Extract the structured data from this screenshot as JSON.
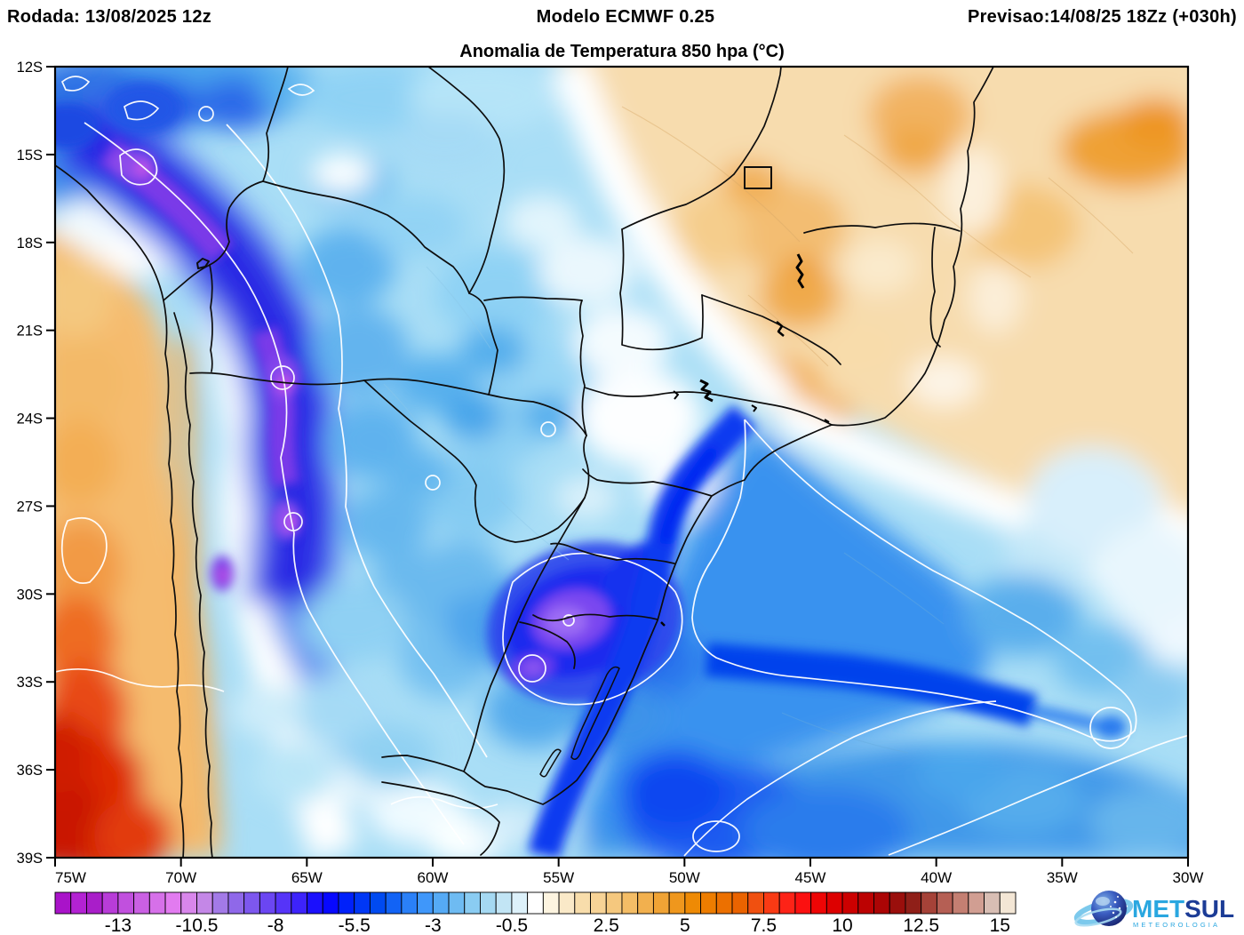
{
  "header": {
    "run_label": "Rodada: 13/08/2025 12z",
    "model_label": "Modelo ECMWF 0.25",
    "forecast_label": "Previsao:14/08/25 18Zz (+030h)"
  },
  "title": "Anomalia de Temperatura 850 hpa (°C)",
  "axes": {
    "lat_labels": [
      "12S",
      "15S",
      "18S",
      "21S",
      "24S",
      "27S",
      "30S",
      "33S",
      "36S",
      "39S"
    ],
    "lon_labels": [
      "75W",
      "70W",
      "65W",
      "60W",
      "55W",
      "50W",
      "45W",
      "40W",
      "35W",
      "30W"
    ]
  },
  "colorbar": {
    "unit": "°C",
    "min": -15,
    "max": 15.5,
    "step": 0.5,
    "tick_values": [
      -13,
      -10.5,
      -8,
      -5.5,
      -3,
      -0.5,
      2.5,
      5,
      7.5,
      10,
      12.5,
      15
    ],
    "tick_labels": [
      "-13",
      "-10.5",
      "-8",
      "-5.5",
      "-3",
      "-0.5",
      "2.5",
      "5",
      "7.5",
      "10",
      "12.5",
      "15"
    ],
    "cell_colors": [
      "#a913c9",
      "#b322d3",
      "#a91ec9",
      "#b83cd8",
      "#c150de",
      "#ca60e3",
      "#d670e9",
      "#e27bf0",
      "#d886eb",
      "#c487e7",
      "#a37ae7",
      "#8f68e9",
      "#7d57ee",
      "#6b46f2",
      "#5634f8",
      "#3d23fb",
      "#1b10fd",
      "#0708ff",
      "#0021fa",
      "#0037f5",
      "#004af0",
      "#1263f5",
      "#2a80f8",
      "#3f97fa",
      "#55aaf5",
      "#6ebbf2",
      "#8accf2",
      "#a5d9f2",
      "#c2e5f5",
      "#ddf1fa",
      "#ffffff",
      "#fdf4e0",
      "#fae9c8",
      "#f8ddab",
      "#f7d396",
      "#f5c87e",
      "#f4bd66",
      "#f2b04e",
      "#f0a335",
      "#ef971d",
      "#ee8a05",
      "#ed7d00",
      "#ec7000",
      "#ea6300",
      "#f05010",
      "#f93a14",
      "#fd2317",
      "#fb1010",
      "#ee0505",
      "#dd0000",
      "#cc0000",
      "#bc0202",
      "#ab0505",
      "#9a0f0c",
      "#8f1f18",
      "#a54238",
      "#b55f54",
      "#c47f72",
      "#d19e92",
      "#d8beb4",
      "#f3e6d5"
    ]
  },
  "logo": {
    "brand_met": "MET",
    "brand_sul": "SUL",
    "subtitle": "METEOROLOGIA",
    "color_met": "#2aa7e0",
    "color_sul": "#1c3c96"
  }
}
